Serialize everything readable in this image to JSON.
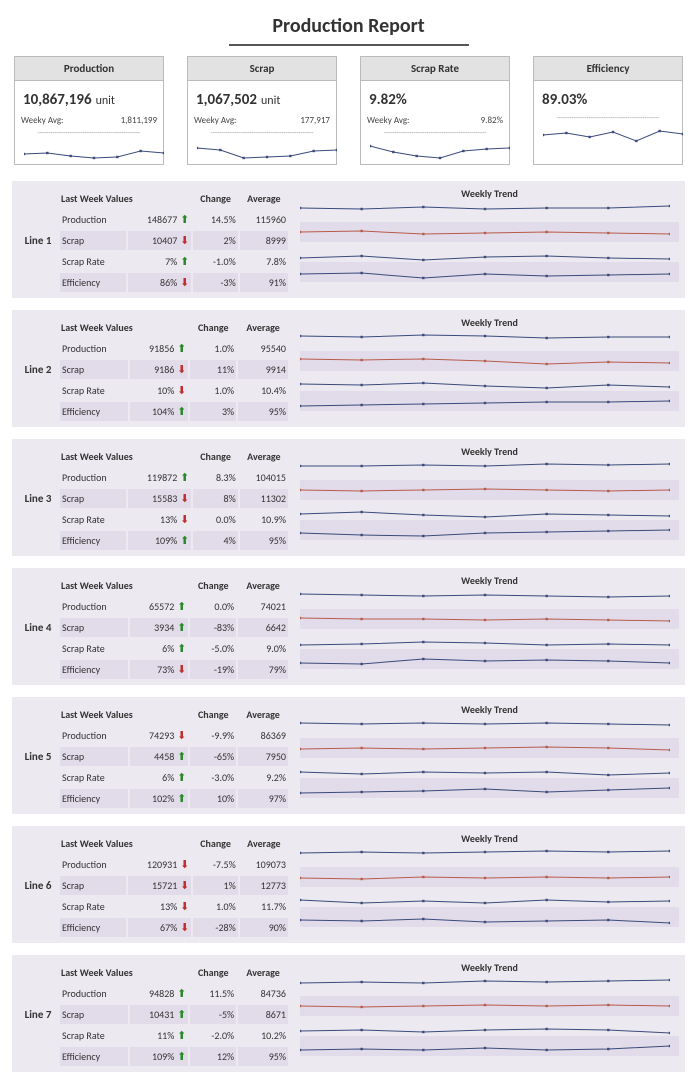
{
  "title": "Production Report",
  "colors": {
    "bg_alt": "#e2dcea",
    "bg_panel": "#eceaf0",
    "spark_main": "#3a4a7a",
    "spark_scrap": "#b85a4a",
    "arrow_up": "#2a8a2a",
    "arrow_down": "#c03030",
    "kpi_header_bg": "#e2e2e2"
  },
  "kpis": [
    {
      "label": "Production",
      "value": "10,867,196",
      "unit": "unit",
      "sub_label": "Weeky Avg:",
      "sub_value": "1,811,199",
      "has_sub": true,
      "spark": [
        18,
        17,
        20,
        22,
        21,
        15,
        17
      ],
      "spark_color": "#3a4a7a"
    },
    {
      "label": "Scrap",
      "value": "1,067,502",
      "unit": "unit",
      "sub_label": "Weeky Avg:",
      "sub_value": "177,917",
      "has_sub": true,
      "spark": [
        12,
        14,
        22,
        21,
        20,
        15,
        14
      ],
      "spark_color": "#3a4a7a"
    },
    {
      "label": "Scrap Rate",
      "value": "9.82%",
      "unit": "",
      "sub_label": "Weeky Avg:",
      "sub_value": "9.82%",
      "has_sub": true,
      "spark": [
        10,
        16,
        20,
        22,
        15,
        13,
        12
      ],
      "spark_color": "#3a4a7a"
    },
    {
      "label": "Efficiency",
      "value": "89.03%",
      "unit": "",
      "sub_label": "",
      "sub_value": "",
      "has_sub": false,
      "spark": [
        14,
        12,
        16,
        11,
        20,
        10,
        13
      ],
      "spark_color": "#3a4a7a"
    }
  ],
  "table_headers": {
    "c1": "Last Week Values",
    "c2": "Change",
    "c3": "Average",
    "trend": "Weekly Trend"
  },
  "row_labels": [
    "Production",
    "Scrap",
    "Scrap Rate",
    "Efficiency"
  ],
  "lines": [
    {
      "name": "Line 1",
      "rows": [
        {
          "value": "148677",
          "dir": "up",
          "change": "14.5%",
          "avg": "115960"
        },
        {
          "value": "10407",
          "dir": "down",
          "change": "2%",
          "avg": "8999"
        },
        {
          "value": "7%",
          "dir": "up",
          "change": "-1.0%",
          "avg": "7.8%"
        },
        {
          "value": "86%",
          "dir": "down",
          "change": "-3%",
          "avg": "91%"
        }
      ],
      "trends": {
        "production": [
          6,
          7,
          5,
          7,
          6,
          6,
          4
        ],
        "scrap": [
          10,
          9,
          12,
          11,
          10,
          11,
          12
        ],
        "scrap_rate": [
          16,
          14,
          18,
          15,
          14,
          16,
          17
        ],
        "efficiency": [
          12,
          11,
          16,
          12,
          14,
          13,
          12
        ]
      }
    },
    {
      "name": "Line 2",
      "rows": [
        {
          "value": "91856",
          "dir": "up",
          "change": "1.0%",
          "avg": "95540"
        },
        {
          "value": "9186",
          "dir": "down",
          "change": "11%",
          "avg": "9914"
        },
        {
          "value": "10%",
          "dir": "down",
          "change": "1.0%",
          "avg": "10.4%"
        },
        {
          "value": "104%",
          "dir": "up",
          "change": "3%",
          "avg": "95%"
        }
      ],
      "trends": {
        "production": [
          5,
          6,
          4,
          5,
          7,
          6,
          6
        ],
        "scrap": [
          8,
          9,
          8,
          10,
          13,
          11,
          12
        ],
        "scrap_rate": [
          13,
          14,
          12,
          15,
          17,
          14,
          16
        ],
        "efficiency": [
          15,
          14,
          13,
          12,
          11,
          11,
          10
        ]
      }
    },
    {
      "name": "Line 3",
      "rows": [
        {
          "value": "119872",
          "dir": "up",
          "change": "8.3%",
          "avg": "104015"
        },
        {
          "value": "15583",
          "dir": "down",
          "change": "8%",
          "avg": "11302"
        },
        {
          "value": "13%",
          "dir": "down",
          "change": "0.0%",
          "avg": "10.9%"
        },
        {
          "value": "109%",
          "dir": "up",
          "change": "4%",
          "avg": "95%"
        }
      ],
      "trends": {
        "production": [
          6,
          6,
          5,
          6,
          4,
          5,
          4
        ],
        "scrap": [
          10,
          11,
          10,
          9,
          10,
          11,
          10
        ],
        "scrap_rate": [
          14,
          12,
          15,
          17,
          14,
          15,
          16
        ],
        "efficiency": [
          13,
          15,
          16,
          13,
          12,
          11,
          10
        ]
      }
    },
    {
      "name": "Line 4",
      "rows": [
        {
          "value": "65572",
          "dir": "up",
          "change": "0.0%",
          "avg": "74021"
        },
        {
          "value": "3934",
          "dir": "up",
          "change": "-83%",
          "avg": "6642"
        },
        {
          "value": "6%",
          "dir": "up",
          "change": "-5.0%",
          "avg": "9.0%"
        },
        {
          "value": "73%",
          "dir": "down",
          "change": "-19%",
          "avg": "79%"
        }
      ],
      "trends": {
        "production": [
          5,
          6,
          7,
          6,
          7,
          8,
          7
        ],
        "scrap": [
          9,
          10,
          10,
          11,
          10,
          11,
          12
        ],
        "scrap_rate": [
          16,
          15,
          13,
          14,
          16,
          15,
          16
        ],
        "efficiency": [
          14,
          15,
          10,
          12,
          11,
          12,
          14
        ]
      }
    },
    {
      "name": "Line 5",
      "rows": [
        {
          "value": "74293",
          "dir": "down",
          "change": "-9.9%",
          "avg": "86369"
        },
        {
          "value": "4458",
          "dir": "up",
          "change": "-65%",
          "avg": "7950"
        },
        {
          "value": "6%",
          "dir": "up",
          "change": "-3.0%",
          "avg": "9.2%"
        },
        {
          "value": "102%",
          "dir": "up",
          "change": "10%",
          "avg": "97%"
        }
      ],
      "trends": {
        "production": [
          5,
          6,
          5,
          6,
          5,
          6,
          7
        ],
        "scrap": [
          11,
          10,
          11,
          10,
          9,
          10,
          12
        ],
        "scrap_rate": [
          14,
          16,
          14,
          15,
          14,
          17,
          15
        ],
        "efficiency": [
          15,
          14,
          13,
          11,
          14,
          12,
          10
        ]
      }
    },
    {
      "name": "Line 6",
      "rows": [
        {
          "value": "120931",
          "dir": "down",
          "change": "-7.5%",
          "avg": "109073"
        },
        {
          "value": "15721",
          "dir": "down",
          "change": "1%",
          "avg": "12773"
        },
        {
          "value": "13%",
          "dir": "down",
          "change": "1.0%",
          "avg": "11.7%"
        },
        {
          "value": "67%",
          "dir": "down",
          "change": "-28%",
          "avg": "90%"
        }
      ],
      "trends": {
        "production": [
          6,
          5,
          6,
          5,
          4,
          5,
          4
        ],
        "scrap": [
          11,
          12,
          10,
          11,
          10,
          11,
          10
        ],
        "scrap_rate": [
          13,
          16,
          14,
          16,
          13,
          15,
          14
        ],
        "efficiency": [
          13,
          14,
          12,
          15,
          14,
          13,
          16
        ]
      }
    },
    {
      "name": "Line 7",
      "rows": [
        {
          "value": "94828",
          "dir": "up",
          "change": "11.5%",
          "avg": "84736"
        },
        {
          "value": "10431",
          "dir": "up",
          "change": "-5%",
          "avg": "8671"
        },
        {
          "value": "11%",
          "dir": "up",
          "change": "-2.0%",
          "avg": "10.2%"
        },
        {
          "value": "109%",
          "dir": "up",
          "change": "12%",
          "avg": "95%"
        }
      ],
      "trends": {
        "production": [
          7,
          6,
          7,
          5,
          6,
          5,
          4
        ],
        "scrap": [
          10,
          11,
          10,
          9,
          10,
          9,
          10
        ],
        "scrap_rate": [
          15,
          14,
          16,
          14,
          13,
          14,
          17
        ],
        "efficiency": [
          14,
          13,
          14,
          12,
          14,
          13,
          10
        ]
      }
    }
  ]
}
